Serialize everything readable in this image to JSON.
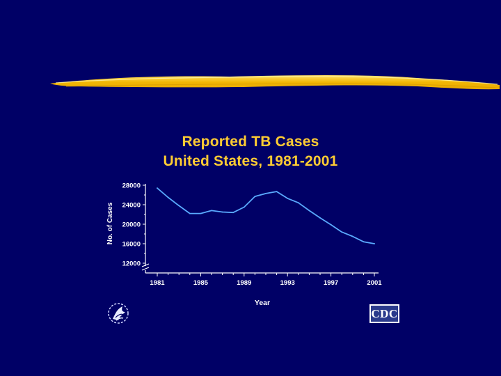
{
  "slide": {
    "title_lines": [
      "Reported TB Cases",
      "United States, 1981-2001"
    ]
  },
  "logos": {
    "hhs": "hhs-eagle-icon",
    "cdc_text": "CDC"
  },
  "colors": {
    "background": "#000066",
    "title": "#ffcc33",
    "line": "#5aaaff",
    "axis": "#ffffff",
    "brush": "#f5c518"
  },
  "chart_data": {
    "type": "line",
    "title": "Reported TB Cases United States, 1981-2001",
    "xlabel": "Year",
    "ylabel": "No. of Cases",
    "xlim": [
      1981,
      2001
    ],
    "ylim": [
      12000,
      28000
    ],
    "axis_break": true,
    "x_ticks": [
      1981,
      1985,
      1989,
      1993,
      1997,
      2001
    ],
    "x_tick_labels": [
      "1981",
      "1985",
      "1989",
      "1993",
      "1997",
      "2001"
    ],
    "y_ticks": [
      12000,
      16000,
      20000,
      24000,
      28000
    ],
    "y_tick_labels": [
      "12000",
      "16000",
      "20000",
      "24000",
      "28000"
    ],
    "grid": false,
    "legend": "none",
    "series": [
      {
        "x": [
          1981,
          1982,
          1983,
          1984,
          1985,
          1986,
          1987,
          1988,
          1989,
          1990,
          1991,
          1992,
          1993,
          1994,
          1995,
          1996,
          1997,
          1998,
          1999,
          2000,
          2001
        ],
        "values": [
          27400,
          25500,
          23800,
          22200,
          22200,
          22800,
          22500,
          22400,
          23500,
          25700,
          26300,
          26700,
          25300,
          24400,
          22800,
          21300,
          19900,
          18400,
          17500,
          16400,
          16000
        ]
      }
    ]
  }
}
